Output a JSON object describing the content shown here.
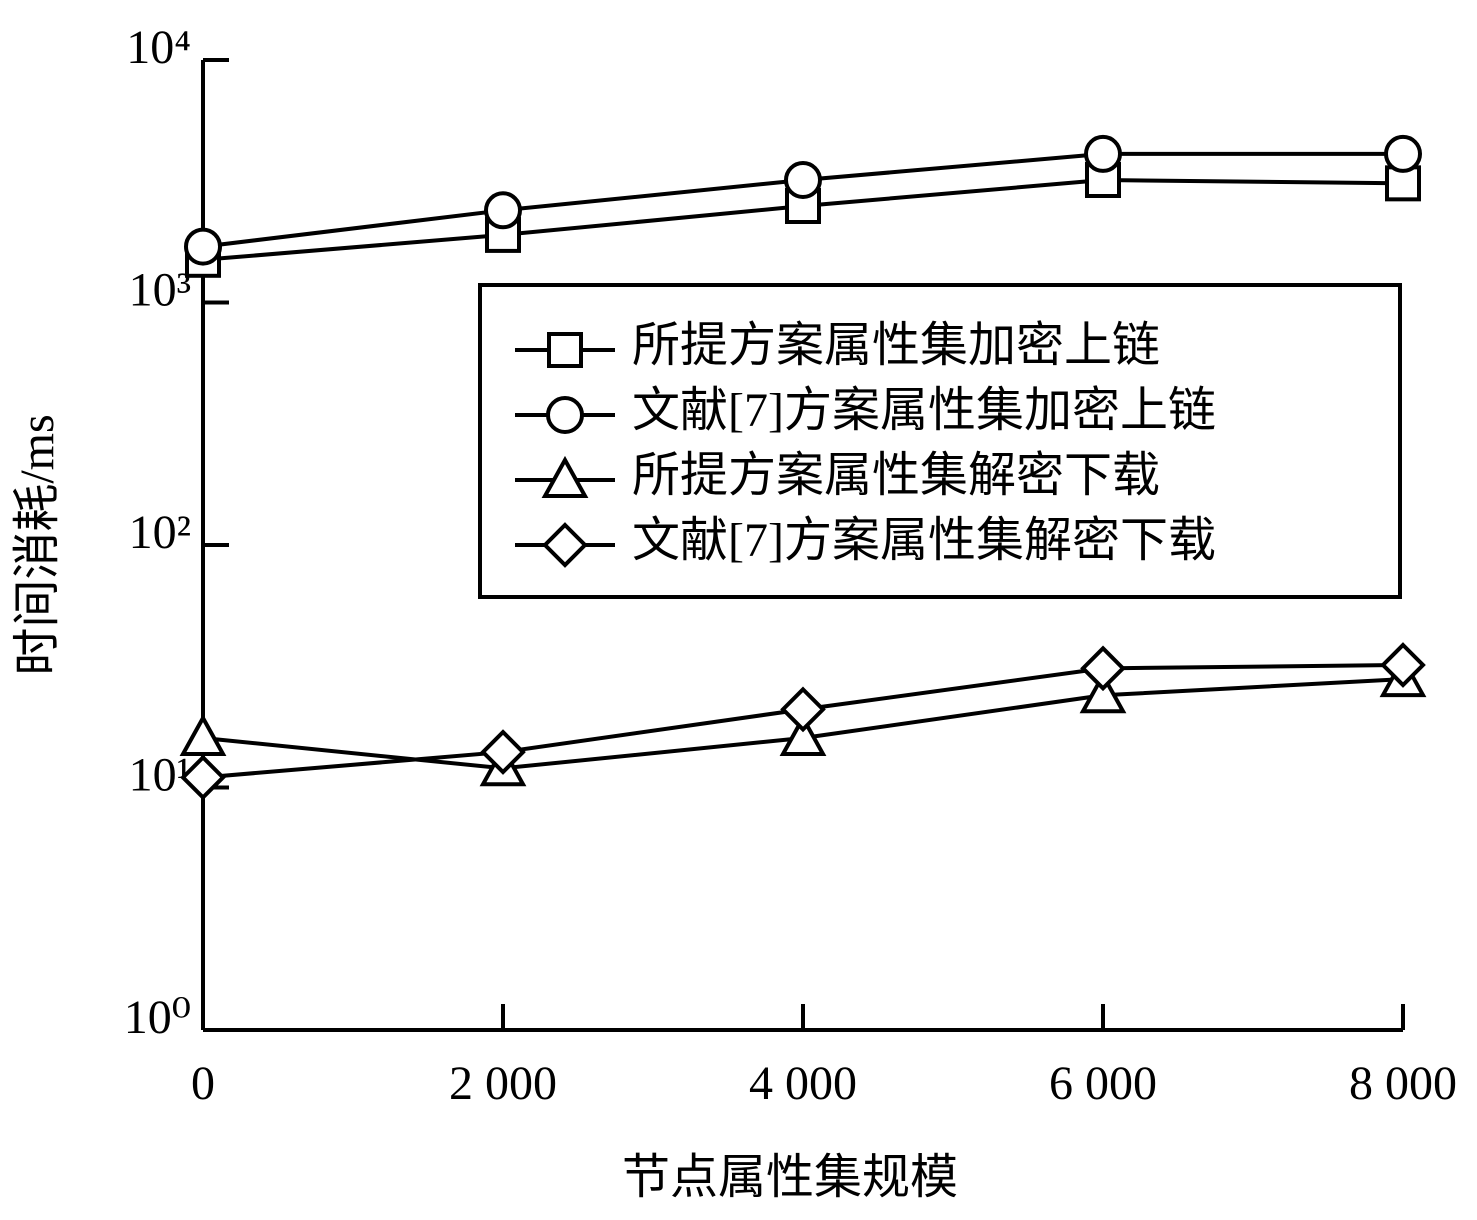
{
  "chart_data": {
    "type": "line",
    "x_label": "节点属性集规模",
    "y_label": "时间消耗/ms",
    "x": [
      0,
      2000,
      4000,
      6000,
      8000
    ],
    "xlim": [
      0,
      8000
    ],
    "xticks": [
      0,
      {
        "value": 2000,
        "label": "2 000"
      },
      {
        "value": 4000,
        "label": "4 000"
      },
      {
        "value": 6000,
        "label": "6 000"
      },
      {
        "value": 8000,
        "label": "8 000"
      }
    ],
    "ylim": [
      1,
      10000
    ],
    "yticks": [
      {
        "value": 1,
        "label": "10⁰"
      },
      {
        "value": 10,
        "label": "10¹"
      },
      {
        "value": 100,
        "label": "10²"
      },
      {
        "value": 1000,
        "label": "10³"
      },
      {
        "value": 10000,
        "label": "10⁴"
      }
    ],
    "log_y": true,
    "grid": false,
    "legend": "right",
    "series": [
      {
        "name": "所提方案属性集加密上链",
        "color": "#000000",
        "marker": "square",
        "values": [
          1500,
          1900,
          2500,
          3200,
          3100
        ]
      },
      {
        "name": "文献[7]方案属性集加密上链",
        "color": "#000000",
        "marker": "circle",
        "values": [
          1700,
          2400,
          3200,
          4100,
          4100
        ]
      },
      {
        "name": "所提方案属性集解密下载",
        "color": "#000000",
        "marker": "triangle",
        "values": [
          16,
          12,
          16,
          24,
          28
        ]
      },
      {
        "name": "文献[7]方案属性集解密下载",
        "color": "#000000",
        "marker": "diamond",
        "values": [
          11,
          14,
          21,
          31,
          32
        ]
      }
    ]
  }
}
